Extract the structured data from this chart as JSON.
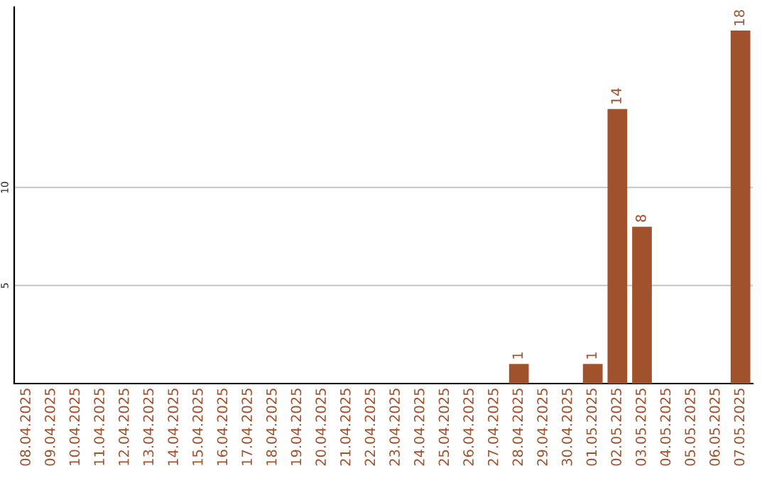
{
  "chart_data": {
    "type": "bar",
    "categories": [
      "08.04.2025",
      "09.04.2025",
      "10.04.2025",
      "11.04.2025",
      "12.04.2025",
      "13.04.2025",
      "14.04.2025",
      "15.04.2025",
      "16.04.2025",
      "17.04.2025",
      "18.04.2025",
      "19.04.2025",
      "20.04.2025",
      "21.04.2025",
      "22.04.2025",
      "23.04.2025",
      "24.04.2025",
      "25.04.2025",
      "26.04.2025",
      "27.04.2025",
      "28.04.2025",
      "29.04.2025",
      "30.04.2025",
      "01.05.2025",
      "02.05.2025",
      "03.05.2025",
      "04.05.2025",
      "05.05.2025",
      "06.05.2025",
      "07.05.2025"
    ],
    "values": [
      0,
      0,
      0,
      0,
      0,
      0,
      0,
      0,
      0,
      0,
      0,
      0,
      0,
      0,
      0,
      0,
      0,
      0,
      0,
      0,
      1,
      0,
      0,
      1,
      14,
      8,
      0,
      0,
      0,
      18
    ],
    "value_labels": [
      null,
      null,
      null,
      null,
      null,
      null,
      null,
      null,
      null,
      null,
      null,
      null,
      null,
      null,
      null,
      null,
      null,
      null,
      null,
      null,
      "1",
      null,
      null,
      "1",
      "14",
      "8",
      null,
      null,
      null,
      "18"
    ],
    "color": "#a0522d",
    "ylim": [
      0,
      19.2
    ],
    "yticks": [
      5,
      10
    ],
    "grid": "y",
    "legend": false
  }
}
